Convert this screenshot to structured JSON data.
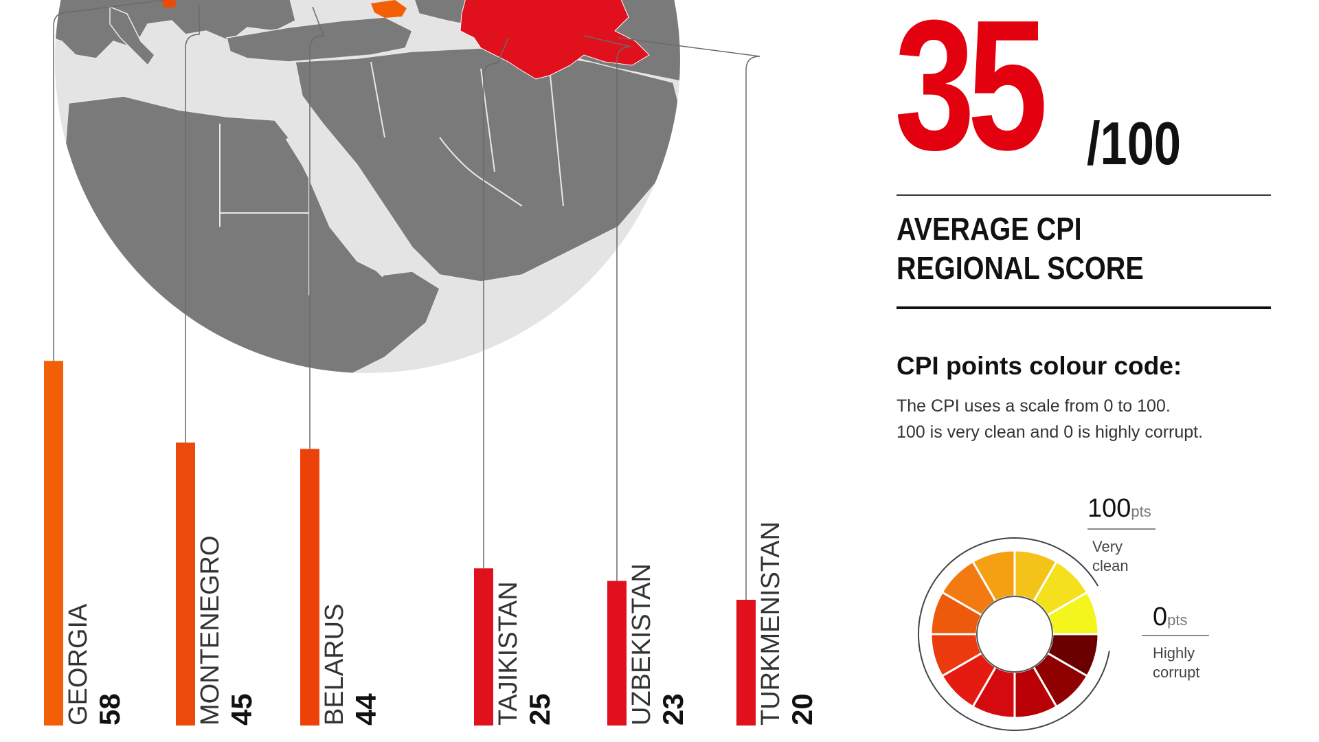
{
  "summary": {
    "score": "35",
    "score_max": "/100",
    "title_line1": "AVERAGE CPI",
    "title_line2": "REGIONAL SCORE"
  },
  "legend": {
    "title": "CPI points colour code:",
    "desc_line1": "The CPI uses a scale from 0 to 100.",
    "desc_line2": "100 is very clean and 0 is highly corrupt.",
    "high_value": "100",
    "high_unit": "pts",
    "high_label_1": "Very",
    "high_label_2": "clean",
    "low_value": "0",
    "low_unit": "pts",
    "low_label_1": "Highly",
    "low_label_2": "corrupt",
    "colors": [
      "#6b0000",
      "#8f0000",
      "#b80006",
      "#d40a0e",
      "#e51a10",
      "#ea3a0e",
      "#ee5a0c",
      "#f27a10",
      "#f4a012",
      "#f4c31a",
      "#f4e01c",
      "#f5f51e"
    ]
  },
  "chart_data": {
    "type": "bar",
    "categories": [
      "GEORGIA",
      "MONTENEGRO",
      "BELARUS",
      "TAJIKISTAN",
      "UZBEKISTAN",
      "TURKMENISTAN"
    ],
    "values": [
      58,
      45,
      44,
      25,
      23,
      20
    ],
    "colors": [
      "#f25f06",
      "#ec4a0a",
      "#ec420a",
      "#e0101c",
      "#e0101c",
      "#e0101c"
    ],
    "ylim": [
      0,
      100
    ]
  }
}
